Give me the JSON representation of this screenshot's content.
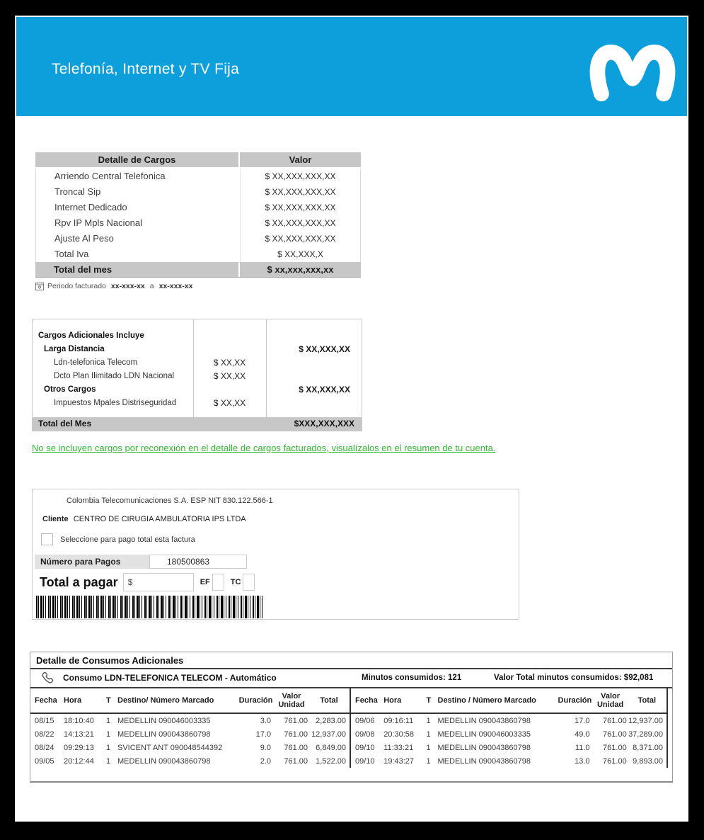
{
  "header": {
    "title": "Telefonía, Internet y TV Fija",
    "brand_color": "#0d9fdb",
    "logo_icon": "movistar-m-logo"
  },
  "cargos_table": {
    "col_headers": [
      "Detalle de Cargos",
      "Valor"
    ],
    "rows": [
      {
        "label": "Arriendo Central Telefonica",
        "value": "$ XX,XXX,XXX,XX"
      },
      {
        "label": "Troncal Sip",
        "value": "$ XX,XXX,XXX,XX"
      },
      {
        "label": "Internet Dedicado",
        "value": "$ XX,XXX,XXX,XX"
      },
      {
        "label": "Rpv IP Mpls Nacional",
        "value": "$ XX,XXX,XXX,XX"
      },
      {
        "label": "Ajuste Al Peso",
        "value": "$ XX,XXX,XXX,XX"
      },
      {
        "label": "Total Iva",
        "value": "$ XX,XXX,X"
      }
    ],
    "footer": {
      "label": "Total del mes",
      "value": "$ xx,xxx,xxx,xx"
    }
  },
  "periodo": {
    "icon": "calendar-icon",
    "label": "Periodo facturado",
    "from": "xx-xxx-xx",
    "conjunction": "a",
    "to": "xx-xxx-xx"
  },
  "adicionales_table": {
    "rows": [
      {
        "label": "Cargos Adicionales Incluye",
        "bold": true,
        "indent": 0,
        "mid": "",
        "right": ""
      },
      {
        "label": "Larga Distancia",
        "bold": true,
        "indent": 1,
        "mid": "",
        "right": "$ XX,XXX,XX"
      },
      {
        "label": "Ldn-telefonica Telecom",
        "bold": false,
        "indent": 2,
        "mid": "$ XX,XX",
        "right": ""
      },
      {
        "label": "Dcto Plan Ilimitado LDN Nacional",
        "bold": false,
        "indent": 2,
        "mid": "$ XX,XX",
        "right": ""
      },
      {
        "label": "Otros Cargos",
        "bold": true,
        "indent": 1,
        "mid": "",
        "right": "$ XX,XXX,XX"
      },
      {
        "label": "Impuestos Mpales Distriseguridad",
        "bold": false,
        "indent": 2,
        "mid": "$ XX,XX",
        "right": ""
      }
    ],
    "footer": {
      "label": "Total del Mes",
      "value": "$XXX,XXX,XXX"
    }
  },
  "notice": {
    "text": "No se incluyen cargos por reconexión en el detalle de cargos facturados, visualízalos en el resumen de tu cuenta.",
    "color": "#2eb82e"
  },
  "payment": {
    "company": "Colombia Telecomunicaciones S.A. ESP NIT 830.122.566-1",
    "cliente_label": "Cliente",
    "cliente_name": "CENTRO DE CIRUGIA AMBULATORIA IPS LTDA",
    "checkbox_label": "Seleccione para pago total esta factura",
    "numero_label": "Número para Pagos",
    "numero_value": "180500863",
    "total_label": "Total a pagar",
    "currency_symbol": "$",
    "ef_label": "EF",
    "tc_label": "TC",
    "barcode_icon": "barcode"
  },
  "consumos": {
    "title": "Detalle de Consumos Adicionales",
    "phone_icon": "phone-icon",
    "consumo_title": "Consumo LDN-TELEFONICA TELECOM - Automático",
    "minutos": "Minutos consumidos: 121",
    "valor_total": "Valor Total minutos consumidos: $92,081",
    "left": {
      "headers": [
        "Fecha",
        "Hora",
        "T",
        "Destino/ Número Marcado",
        "Duración",
        "Valor Unidad",
        "Total"
      ],
      "rows": [
        [
          "08/15",
          "18:10:40",
          "1",
          "MEDELLIN 090046003335",
          "3.0",
          "761.00",
          "2,283.00"
        ],
        [
          "08/22",
          "14:13:21",
          "1",
          "MEDELLIN 090043860798",
          "17.0",
          "761.00",
          "12,937.00"
        ],
        [
          "08/24",
          "09:29:13",
          "1",
          "SVICENT ANT 090048544392",
          "9.0",
          "761.00",
          "6,849.00"
        ],
        [
          "09/05",
          "20:12:44",
          "1",
          "MEDELLIN 090043860798",
          "2.0",
          "761.00",
          "1,522.00"
        ]
      ]
    },
    "right": {
      "headers": [
        "Fecha",
        "Hora",
        "T",
        "Destino / Número Marcado",
        "Duración",
        "Valor Unidad",
        "Total"
      ],
      "rows": [
        [
          "09/06",
          "09:16:11",
          "1",
          "MEDELLIN 090043860798",
          "17.0",
          "761.00",
          "12,937.00"
        ],
        [
          "09/08",
          "20:30:58",
          "1",
          "MEDELLIN 090046003335",
          "49.0",
          "761.00",
          "37,289.00"
        ],
        [
          "09/10",
          "11:33:21",
          "1",
          "MEDELLIN 090043860798",
          "11.0",
          "761.00",
          "8,371.00"
        ],
        [
          "09/10",
          "19:43:27",
          "1",
          "MEDELLIN 090043860798",
          "13.0",
          "761.00",
          "9,893.00"
        ]
      ]
    }
  }
}
